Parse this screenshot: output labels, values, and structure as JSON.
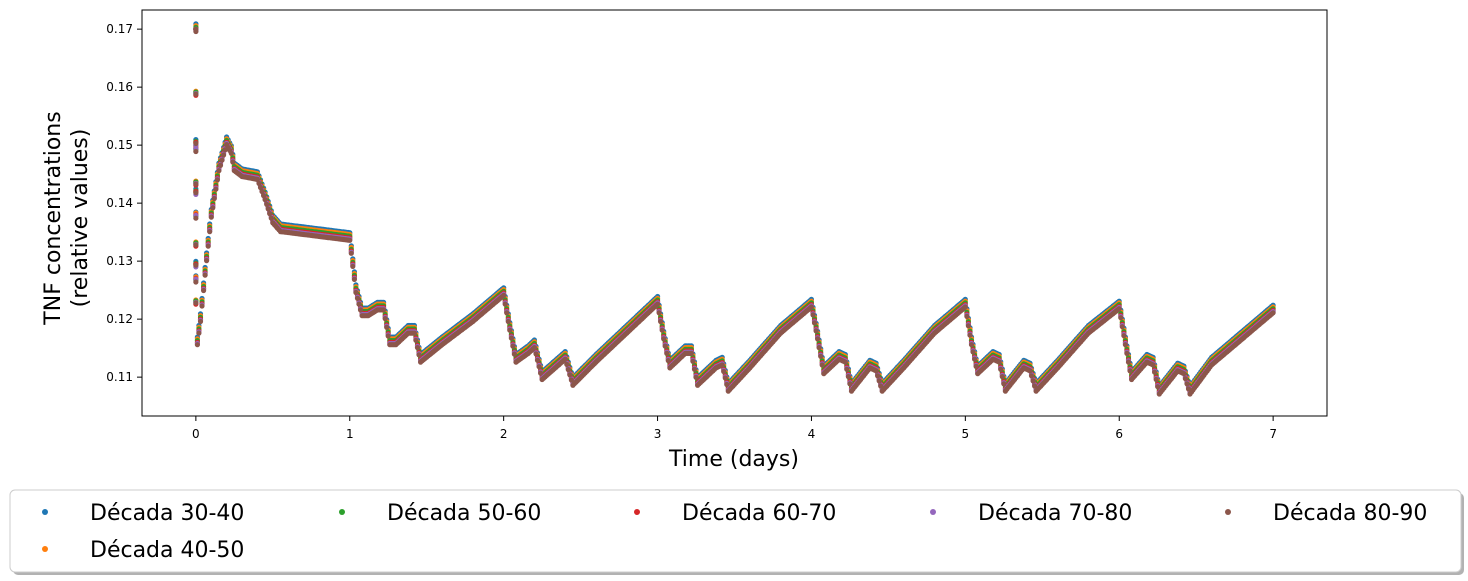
{
  "chart_data": {
    "type": "scatter",
    "title": "",
    "xlabel": "Time (days)",
    "ylabel_lines": [
      "TNF concentrations",
      "(relative values)"
    ],
    "xlim": [
      -0.35,
      7.35
    ],
    "ylim": [
      0.1033,
      0.1733
    ],
    "xticks": [
      0,
      1,
      2,
      3,
      4,
      5,
      6,
      7
    ],
    "yticks": [
      0.11,
      0.12,
      0.13,
      0.14,
      0.15,
      0.16,
      0.17
    ],
    "ytick_labels": [
      "0.11",
      "0.12",
      "0.13",
      "0.14",
      "0.15",
      "0.16",
      "0.17"
    ],
    "grid": false,
    "legend_position": "bottom",
    "series": [
      {
        "name": "Década 30-40",
        "color": "#1f77b4",
        "offset": 0.0009
      },
      {
        "name": "Década 40-50",
        "color": "#ff7f0e",
        "offset": 0.0006
      },
      {
        "name": "Década 50-60",
        "color": "#2ca02c",
        "offset": 0.0003
      },
      {
        "name": "Década 60-70",
        "color": "#d62728",
        "offset": 0.0
      },
      {
        "name": "Década 70-80",
        "color": "#9467bd",
        "offset": -0.0002
      },
      {
        "name": "Década 80-90",
        "color": "#8c564b",
        "offset": -0.0004
      }
    ],
    "base_curve": [
      [
        0.0,
        0.17
      ],
      [
        0.01,
        0.116
      ],
      [
        0.03,
        0.12
      ],
      [
        0.06,
        0.128
      ],
      [
        0.1,
        0.138
      ],
      [
        0.15,
        0.146
      ],
      [
        0.2,
        0.1505
      ],
      [
        0.23,
        0.149
      ],
      [
        0.25,
        0.146
      ],
      [
        0.3,
        0.145
      ],
      [
        0.4,
        0.1445
      ],
      [
        0.45,
        0.141
      ],
      [
        0.5,
        0.137
      ],
      [
        0.55,
        0.1355
      ],
      [
        0.7,
        0.135
      ],
      [
        0.85,
        0.1345
      ],
      [
        1.0,
        0.134
      ],
      [
        1.04,
        0.125
      ],
      [
        1.08,
        0.121
      ],
      [
        1.12,
        0.121
      ],
      [
        1.18,
        0.122
      ],
      [
        1.22,
        0.122
      ],
      [
        1.26,
        0.116
      ],
      [
        1.3,
        0.116
      ],
      [
        1.38,
        0.118
      ],
      [
        1.42,
        0.118
      ],
      [
        1.46,
        0.113
      ],
      [
        1.6,
        0.116
      ],
      [
        1.8,
        0.12
      ],
      [
        2.0,
        0.1245
      ],
      [
        2.04,
        0.1185
      ],
      [
        2.08,
        0.113
      ],
      [
        2.16,
        0.1145
      ],
      [
        2.2,
        0.1155
      ],
      [
        2.25,
        0.11
      ],
      [
        2.4,
        0.1135
      ],
      [
        2.45,
        0.109
      ],
      [
        2.6,
        0.113
      ],
      [
        2.8,
        0.118
      ],
      [
        3.0,
        0.123
      ],
      [
        3.04,
        0.117
      ],
      [
        3.08,
        0.112
      ],
      [
        3.18,
        0.1145
      ],
      [
        3.22,
        0.1145
      ],
      [
        3.26,
        0.109
      ],
      [
        3.38,
        0.112
      ],
      [
        3.42,
        0.1125
      ],
      [
        3.46,
        0.108
      ],
      [
        3.6,
        0.112
      ],
      [
        3.8,
        0.118
      ],
      [
        4.0,
        0.1225
      ],
      [
        4.04,
        0.117
      ],
      [
        4.08,
        0.111
      ],
      [
        4.18,
        0.1135
      ],
      [
        4.22,
        0.113
      ],
      [
        4.26,
        0.108
      ],
      [
        4.38,
        0.112
      ],
      [
        4.42,
        0.1115
      ],
      [
        4.46,
        0.108
      ],
      [
        4.6,
        0.112
      ],
      [
        4.8,
        0.118
      ],
      [
        5.0,
        0.1225
      ],
      [
        5.04,
        0.116
      ],
      [
        5.08,
        0.111
      ],
      [
        5.18,
        0.1135
      ],
      [
        5.22,
        0.113
      ],
      [
        5.26,
        0.108
      ],
      [
        5.38,
        0.112
      ],
      [
        5.42,
        0.1115
      ],
      [
        5.46,
        0.108
      ],
      [
        5.6,
        0.112
      ],
      [
        5.8,
        0.118
      ],
      [
        6.0,
        0.1222
      ],
      [
        6.04,
        0.116
      ],
      [
        6.08,
        0.11
      ],
      [
        6.18,
        0.113
      ],
      [
        6.22,
        0.1125
      ],
      [
        6.26,
        0.1075
      ],
      [
        6.38,
        0.1115
      ],
      [
        6.42,
        0.111
      ],
      [
        6.46,
        0.1075
      ],
      [
        6.6,
        0.1125
      ],
      [
        6.8,
        0.117
      ],
      [
        7.0,
        0.1215
      ]
    ],
    "initial_spike_values": [
      0.159,
      0.1505,
      0.1495,
      0.1435,
      0.142,
      0.138,
      0.133,
      0.1295,
      0.127,
      0.123
    ]
  }
}
